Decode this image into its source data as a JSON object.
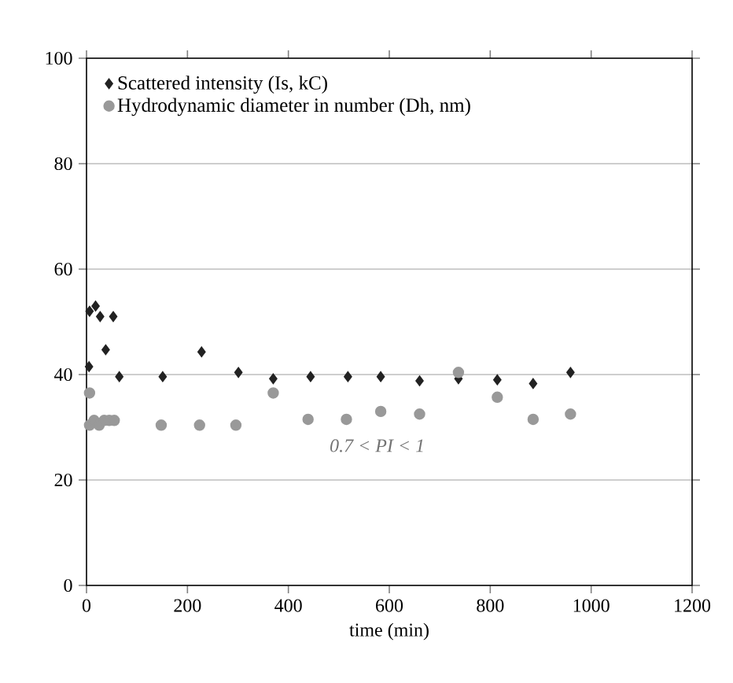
{
  "chart_data": {
    "type": "scatter",
    "xlabel": "time (min)",
    "xlim": [
      0,
      1200
    ],
    "xticks": [
      0,
      200,
      400,
      600,
      800,
      1000,
      1200
    ],
    "ylim": [
      0,
      100
    ],
    "yticks": [
      0,
      20,
      40,
      60,
      80,
      100
    ],
    "grid": "y",
    "legend": "top left",
    "annotations": [
      "0.7 < PI < 1"
    ],
    "series": [
      {
        "name": "Scattered intensity (Is, kC)",
        "color": "#222222",
        "marker": "diamond",
        "x": [
          5,
          6,
          18,
          27,
          38,
          53,
          65,
          151,
          228,
          301,
          370,
          444,
          518,
          583,
          660,
          737,
          814,
          885,
          959
        ],
        "values": [
          41.5,
          52,
          53,
          51,
          44.7,
          51,
          39.6,
          39.6,
          44.3,
          40.4,
          39.2,
          39.6,
          39.6,
          39.6,
          38.8,
          39.2,
          39,
          38.3,
          40.4
        ]
      },
      {
        "name": "Hydrodynamic diameter in number (Dh, nm)",
        "color": "#999999",
        "marker": "circle",
        "x": [
          6,
          6,
          15,
          25,
          35,
          45,
          55,
          148,
          224,
          296,
          370,
          439,
          515,
          583,
          660,
          737,
          814,
          885,
          959
        ],
        "values": [
          36.5,
          30.4,
          31.3,
          30.4,
          31.3,
          31.3,
          31.3,
          30.4,
          30.4,
          30.4,
          36.5,
          31.5,
          31.5,
          33,
          32.5,
          40.4,
          35.7,
          31.5,
          32.5
        ]
      }
    ]
  }
}
